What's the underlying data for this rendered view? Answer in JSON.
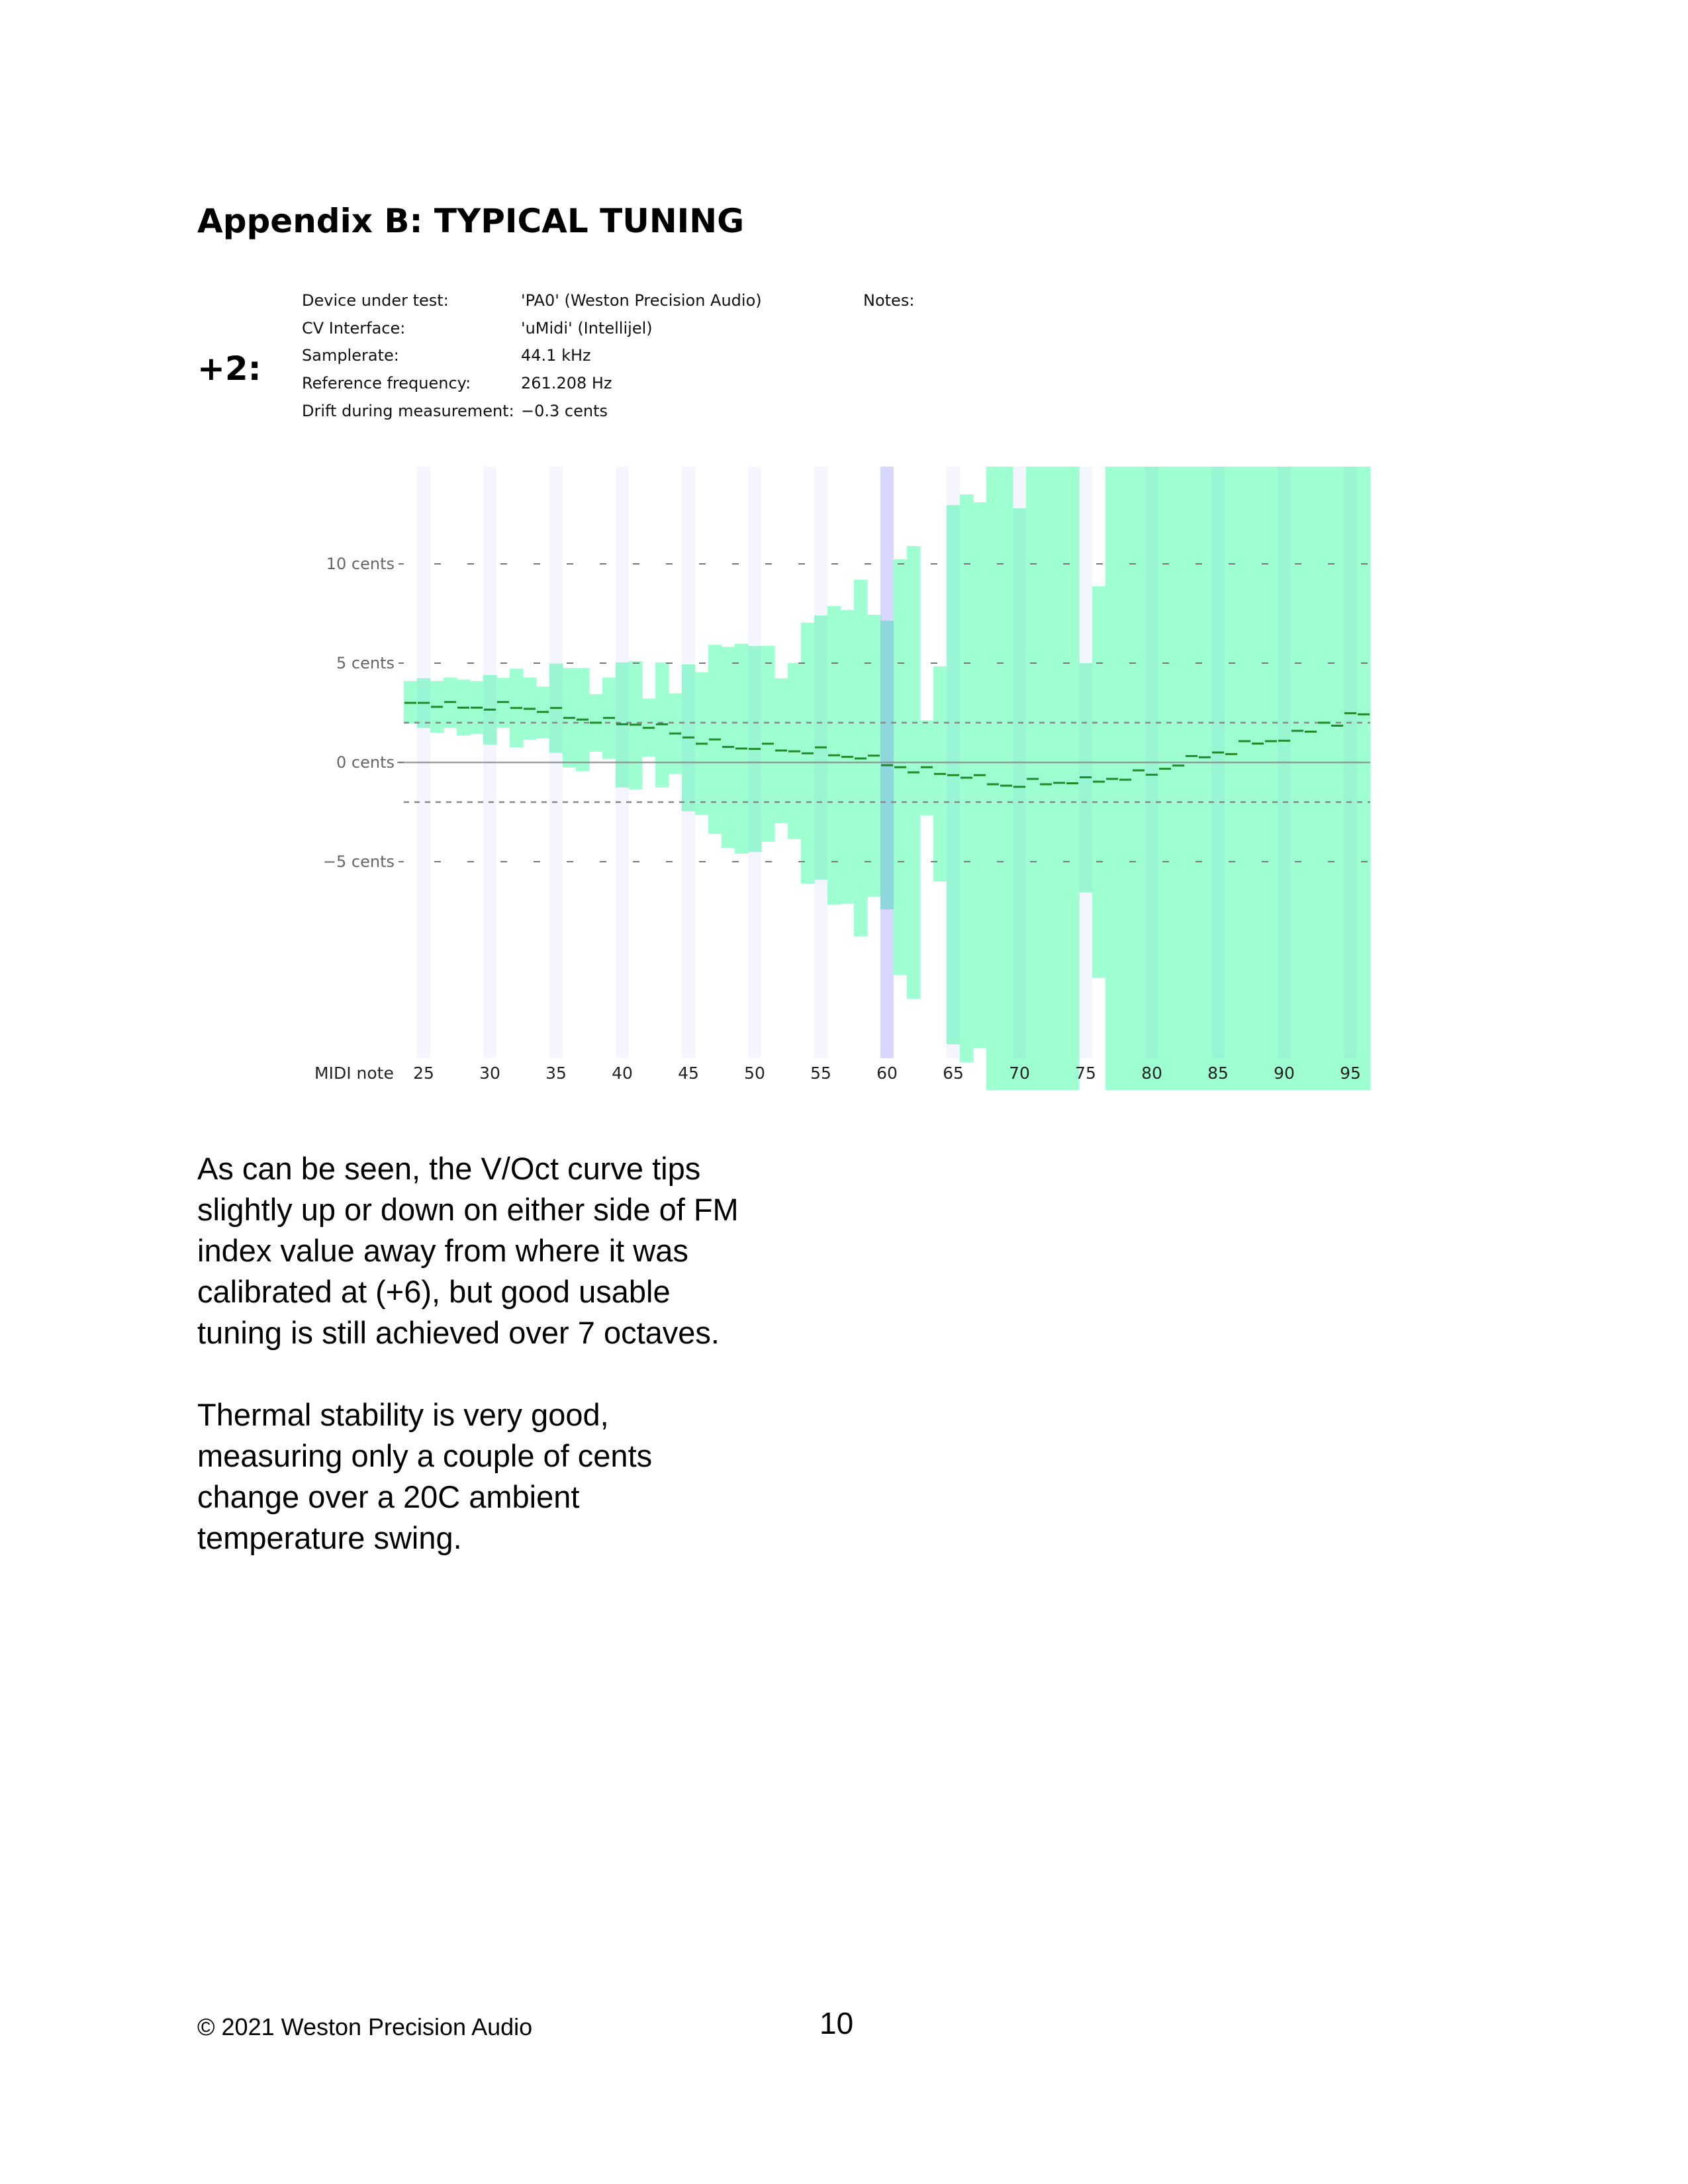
{
  "title": "Appendix B: TYPICAL TUNING",
  "variant_label": "+2:",
  "info": [
    {
      "label": "Device under test:",
      "value": "'PA0' (Weston Precision Audio)"
    },
    {
      "label": "CV Interface:",
      "value": "'uMidi' (Intellijel)"
    },
    {
      "label": "Samplerate:",
      "value": "44.1 kHz"
    },
    {
      "label": "Reference frequency:",
      "value": "261.208 Hz"
    },
    {
      "label": "Drift during measurement:",
      "value": "−0.3 cents"
    }
  ],
  "notes_label": "Notes:",
  "chart_data": {
    "type": "bar",
    "title": "",
    "xlabel": "MIDI note",
    "ylabel": "",
    "ylim": [
      -16.5,
      14.9
    ],
    "y_ticks": [
      {
        "value": 10,
        "label": "10 cents"
      },
      {
        "value": 5,
        "label": "5 cents"
      },
      {
        "value": 0,
        "label": "0 cents"
      },
      {
        "value": -5,
        "label": "−5 cents"
      }
    ],
    "x_ticks": [
      25,
      30,
      35,
      40,
      45,
      50,
      55,
      60,
      65,
      70,
      75,
      80,
      85,
      90,
      95
    ],
    "reference_lines": [
      2,
      -2
    ],
    "highlight_note": 60,
    "colors": {
      "range": "#9effd0",
      "center": "#1e8a2a",
      "band": "#eeeeff",
      "highlight": "#d6d6ff"
    },
    "notes": [
      24,
      25,
      26,
      27,
      28,
      29,
      30,
      31,
      32,
      33,
      34,
      35,
      36,
      37,
      38,
      39,
      40,
      41,
      42,
      43,
      44,
      45,
      46,
      47,
      48,
      49,
      50,
      51,
      52,
      53,
      54,
      55,
      56,
      57,
      58,
      59,
      60,
      61,
      62,
      63,
      64,
      65,
      66,
      67,
      68,
      69,
      70,
      71,
      72,
      73,
      74,
      75,
      76,
      77,
      78,
      79,
      80,
      81,
      82,
      83,
      84,
      85,
      86,
      87,
      88,
      89,
      90,
      91,
      92,
      93,
      94,
      95,
      96
    ],
    "center": [
      3.0,
      3.0,
      2.8,
      3.04,
      2.76,
      2.76,
      2.66,
      3.04,
      2.74,
      2.7,
      2.54,
      2.74,
      2.24,
      2.16,
      2.0,
      2.24,
      1.92,
      1.9,
      1.74,
      1.92,
      1.46,
      1.26,
      0.94,
      1.16,
      0.78,
      0.7,
      0.68,
      0.94,
      0.6,
      0.56,
      0.46,
      0.76,
      0.36,
      0.28,
      0.2,
      0.34,
      -0.14,
      -0.24,
      -0.5,
      -0.24,
      -0.58,
      -0.64,
      -0.77,
      -0.64,
      -1.1,
      -1.17,
      -1.23,
      -0.83,
      -1.1,
      -1.03,
      -1.05,
      -0.75,
      -0.97,
      -0.83,
      -0.87,
      -0.4,
      -0.62,
      -0.32,
      -0.16,
      0.32,
      0.26,
      0.5,
      0.42,
      1.07,
      0.95,
      1.07,
      1.09,
      1.59,
      1.55,
      2.0,
      1.85,
      2.48,
      2.42
    ],
    "upper": [
      4.1,
      4.24,
      4.1,
      4.28,
      4.18,
      4.1,
      4.4,
      4.26,
      4.72,
      4.28,
      3.82,
      4.98,
      4.76,
      4.76,
      3.44,
      4.28,
      5.04,
      5.1,
      3.22,
      5.04,
      3.48,
      4.94,
      4.54,
      5.92,
      5.82,
      5.98,
      5.86,
      5.88,
      4.24,
      5.0,
      7.04,
      7.4,
      7.88,
      7.68,
      9.2,
      7.44,
      7.14,
      10.24,
      10.9,
      2.12,
      4.84,
      12.96,
      13.5,
      13.1,
      14.9,
      14.9,
      12.8,
      14.9,
      14.9,
      14.9,
      14.9,
      5.0,
      8.87,
      14.9,
      14.9,
      14.9,
      14.9,
      14.9,
      14.9,
      14.9,
      14.9,
      14.9,
      14.9,
      14.9,
      14.9,
      14.9,
      14.9,
      14.9,
      14.9,
      14.9,
      14.9,
      14.9,
      14.9
    ],
    "lower": [
      1.96,
      1.74,
      1.5,
      1.74,
      1.36,
      1.44,
      0.9,
      1.74,
      0.76,
      1.14,
      1.22,
      0.48,
      -0.26,
      -0.44,
      0.54,
      0.18,
      -1.26,
      -1.36,
      0.28,
      -1.26,
      -0.58,
      -2.46,
      -2.64,
      -3.6,
      -4.3,
      -4.6,
      -4.5,
      -4.0,
      -3.06,
      -3.86,
      -6.1,
      -5.9,
      -7.16,
      -7.12,
      -8.76,
      -6.76,
      -7.4,
      -10.7,
      -11.9,
      -2.68,
      -6.0,
      -14.2,
      -15.1,
      -14.4,
      -16.5,
      -16.5,
      -16.5,
      -16.5,
      -16.5,
      -16.5,
      -16.5,
      -6.55,
      -10.85,
      -16.5,
      -16.5,
      -16.5,
      -16.5,
      -16.5,
      -16.5,
      -16.5,
      -16.5,
      -16.5,
      -16.5,
      -16.5,
      -16.5,
      -16.5,
      -16.5,
      -16.5,
      -16.5,
      -16.5,
      -16.5,
      -16.5,
      -16.5
    ]
  },
  "paragraphs": [
    [
      "As can be seen, the V/Oct curve tips",
      "slightly up or down on either side of FM",
      "index value away from where it was",
      "calibrated at (+6), but good usable",
      "tuning is still achieved over 7 octaves."
    ],
    [
      "Thermal stability is very good,",
      "measuring only a couple of cents",
      "change over a 20C ambient",
      "temperature swing."
    ]
  ],
  "footer": {
    "copyright": "© 2021 Weston Precision Audio",
    "page_number": "10"
  }
}
